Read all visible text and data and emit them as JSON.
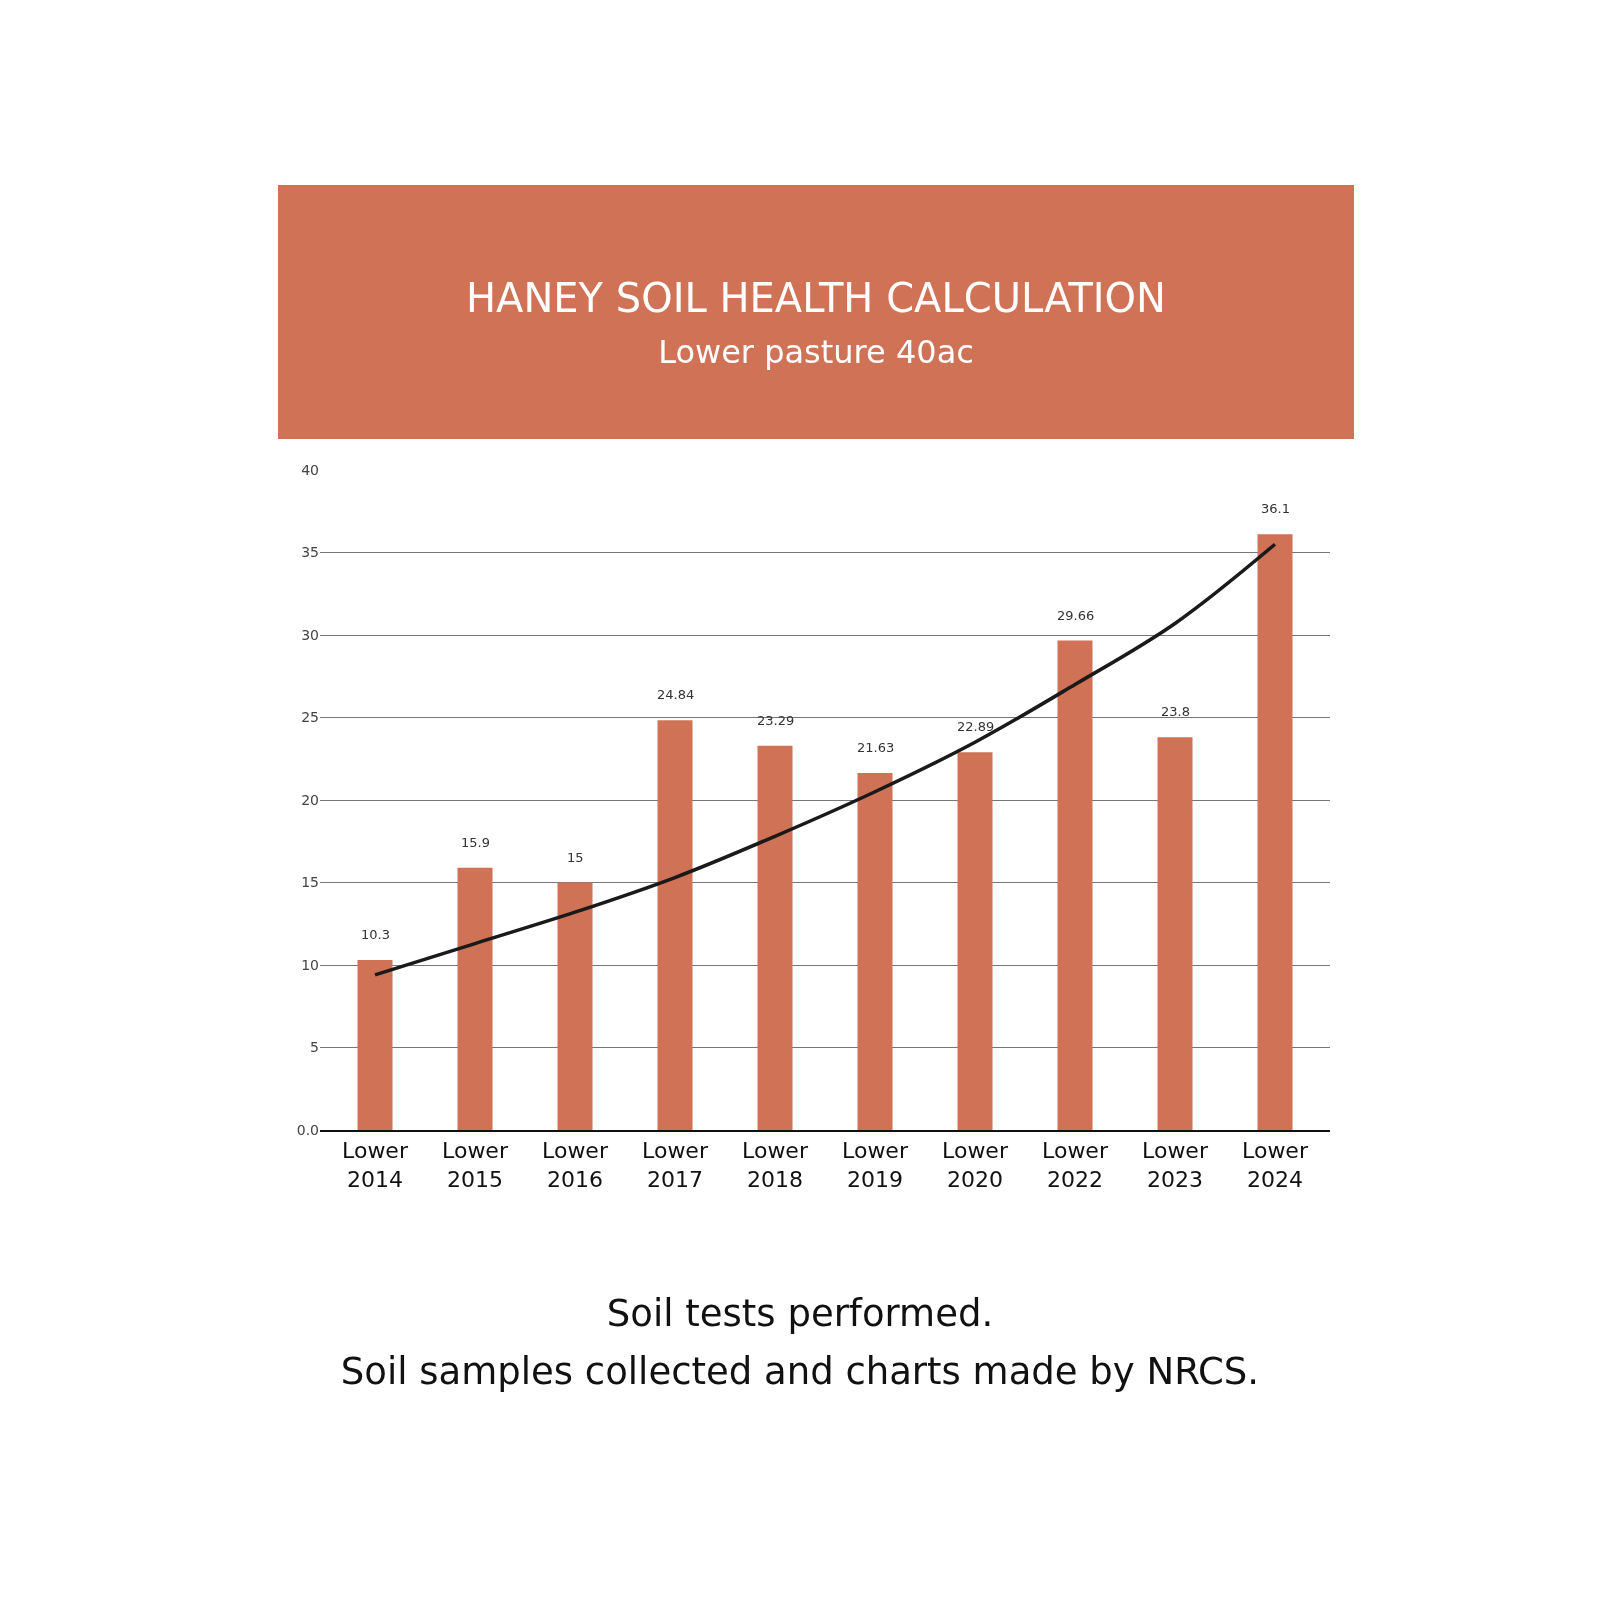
{
  "chart_data": {
    "type": "bar",
    "title": "HANEY SOIL HEALTH CALCULATION",
    "subtitle": "Lower pasture 40ac",
    "categories": [
      "Lower 2014",
      "Lower 2015",
      "Lower 2016",
      "Lower 2017",
      "Lower 2018",
      "Lower 2019",
      "Lower 2020",
      "Lower 2022",
      "Lower 2023",
      "Lower 2024"
    ],
    "series": [
      {
        "color": "#d07255",
        "values": [
          10.3,
          15.9,
          15,
          24.84,
          23.29,
          21.63,
          22.89,
          29.66,
          23.8,
          36.1
        ],
        "value_labels": [
          "10.3",
          "15.9",
          "15",
          "24.84",
          "23.29",
          "21.63",
          "22.89",
          "29.66",
          "23.8",
          "36.1"
        ]
      },
      {
        "type": "line",
        "color": "#1a1a1a",
        "marker": "none",
        "line_style": "solid",
        "x": [
          "Lower 2014",
          "Lower 2015",
          "Lower 2016",
          "Lower 2017",
          "Lower 2018",
          "Lower 2019",
          "Lower 2020",
          "Lower 2022",
          "Lower 2023",
          "Lower 2024"
        ],
        "values": [
          9.4,
          11.3,
          13.2,
          15.3,
          17.8,
          20.5,
          23.5,
          27,
          30.7,
          35.5
        ]
      }
    ],
    "ylim": [
      0,
      40
    ],
    "yticks": [
      {
        "value": 0,
        "label": "0.0"
      },
      5,
      10,
      15,
      20,
      25,
      30,
      35,
      40
    ],
    "grid": "y",
    "annotations": [
      "Soil tests performed.",
      "Soil samples collected and charts made by NRCS."
    ]
  }
}
